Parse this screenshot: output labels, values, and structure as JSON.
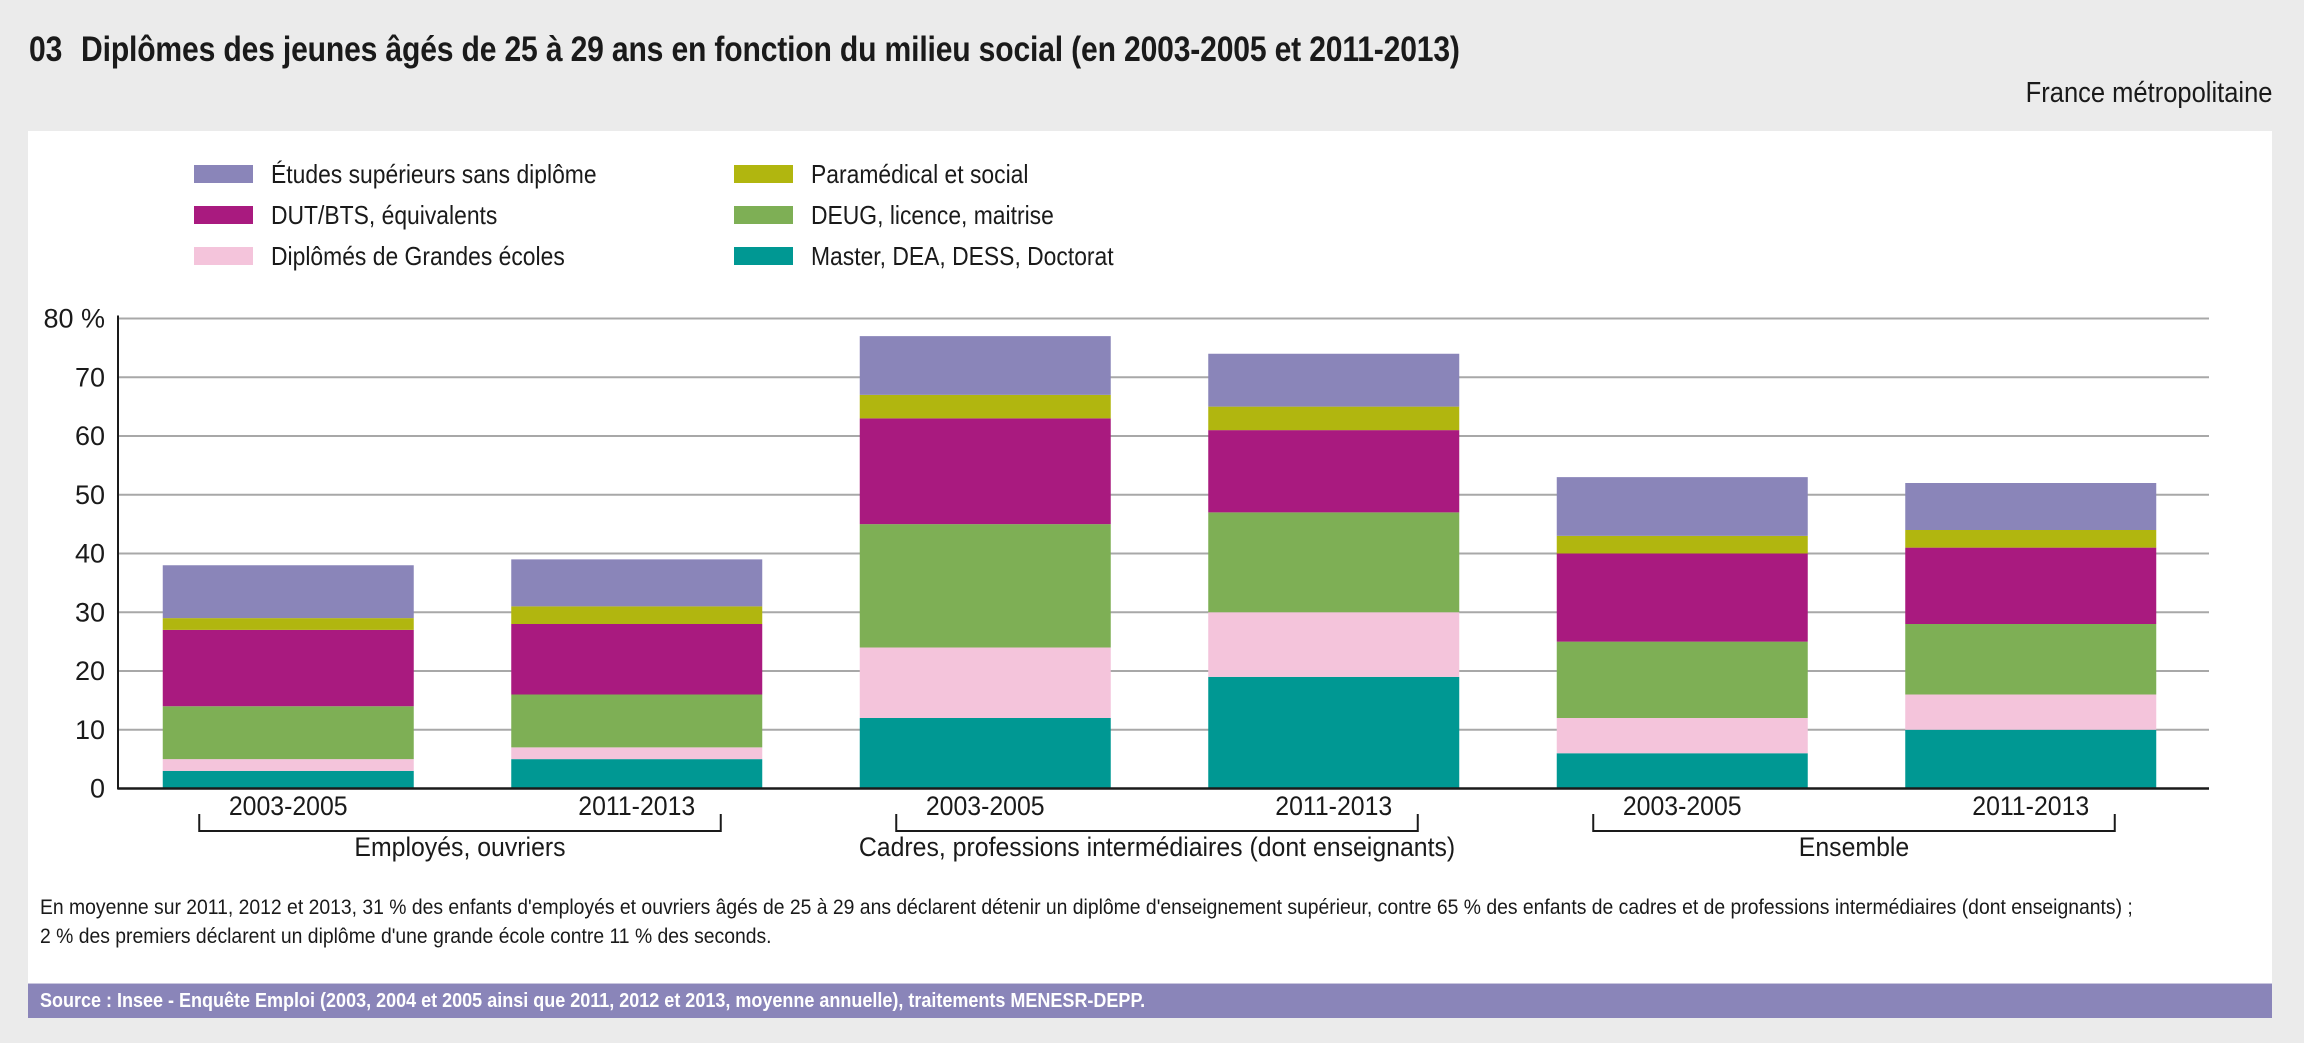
{
  "header": {
    "figure_number": "03",
    "title": "Diplômes des jeunes âgés de 25 à 29 ans en fonction du milieu social (en 2003-2005 et 2011-2013)",
    "region": "France métropolitaine"
  },
  "footnote": {
    "line1": "En moyenne sur  2011, 2012 et 2013, 31 % des enfants d'employés et ouvriers âgés de 25 à 29 ans déclarent détenir un diplôme d'enseignement supérieur, contre 65 % des enfants de cadres et de professions intermédiaires (dont enseignants) ;",
    "line2": "2 % des premiers déclarent un diplôme d'une grande école contre 11 % des seconds."
  },
  "source": "Source : Insee - Enquête Emploi (2003, 2004 et 2005 ainsi que  2011, 2012 et 2013, moyenne annuelle), traitements MENESR-DEPP.",
  "colors": {
    "etudes_sans_diplome": "#8a85b9",
    "dut_bts": "#a91a7f",
    "grandes_ecoles": "#f4c4db",
    "paramedical": "#b1b60f",
    "deug_licence": "#7eaf55",
    "master_doctorat": "#009893",
    "source_bar": "#8a85b9"
  },
  "chart_data": {
    "type": "bar",
    "stacked": true,
    "title": "Diplômes des jeunes âgés de 25 à 29 ans en fonction du milieu social (en 2003-2005 et 2011-2013)",
    "xlabel": "",
    "ylabel": "%",
    "ylim": [
      0,
      80
    ],
    "yticks": [
      0,
      10,
      20,
      30,
      40,
      50,
      60,
      70,
      80
    ],
    "ytick_labels": [
      "0",
      "10",
      "20",
      "30",
      "40",
      "50",
      "60",
      "70",
      "80 %"
    ],
    "grid": true,
    "legend_position": "top-left",
    "categories": [
      "2003-2005",
      "2011-2013",
      "2003-2005",
      "2011-2013",
      "2003-2005",
      "2011-2013"
    ],
    "groups": [
      {
        "label": "Employés, ouvriers",
        "categories": [
          0,
          1
        ]
      },
      {
        "label": "Cadres, professions intermédiaires (dont enseignants)",
        "categories": [
          2,
          3
        ]
      },
      {
        "label": "Ensemble",
        "categories": [
          4,
          5
        ]
      }
    ],
    "legend": [
      {
        "key": "etudes_sans_diplome",
        "label": "Études supérieurs sans diplôme"
      },
      {
        "key": "dut_bts",
        "label": "DUT/BTS, équivalents"
      },
      {
        "key": "grandes_ecoles",
        "label": "Diplômés de Grandes écoles"
      },
      {
        "key": "paramedical",
        "label": "Paramédical et social"
      },
      {
        "key": "deug_licence",
        "label": "DEUG, licence, maitrise"
      },
      {
        "key": "master_doctorat",
        "label": "Master, DEA, DESS, Doctorat"
      }
    ],
    "series": [
      {
        "key": "master_doctorat",
        "name": "Master, DEA, DESS, Doctorat",
        "values": [
          3,
          5,
          12,
          19,
          6,
          10
        ]
      },
      {
        "key": "grandes_ecoles",
        "name": "Diplômés de Grandes écoles",
        "values": [
          2,
          2,
          12,
          11,
          6,
          6
        ]
      },
      {
        "key": "deug_licence",
        "name": "DEUG, licence, maitrise",
        "values": [
          9,
          9,
          21,
          17,
          13,
          12
        ]
      },
      {
        "key": "dut_bts",
        "name": "DUT/BTS, équivalents",
        "values": [
          13,
          12,
          18,
          14,
          15,
          13
        ]
      },
      {
        "key": "paramedical",
        "name": "Paramédical et social",
        "values": [
          2,
          3,
          4,
          4,
          3,
          3
        ]
      },
      {
        "key": "etudes_sans_diplome",
        "name": "Études supérieurs sans diplôme",
        "values": [
          9,
          8,
          10,
          9,
          10,
          8
        ]
      }
    ]
  }
}
